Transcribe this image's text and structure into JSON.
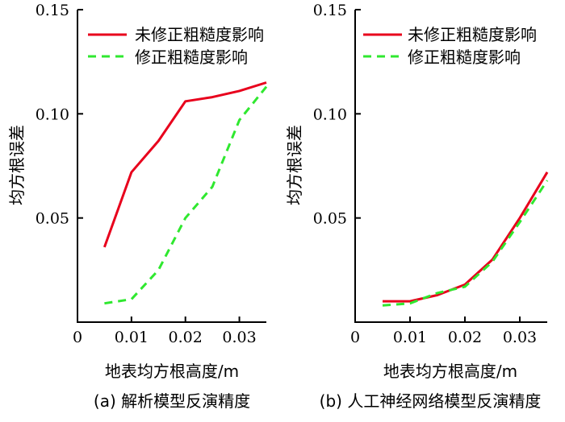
{
  "chart_data": [
    {
      "type": "line",
      "caption": "(a) 解析模型反演精度",
      "xlabel": "地表均方根高度/m",
      "ylabel": "均方根误差",
      "xlim": [
        0,
        0.035
      ],
      "ylim": [
        0,
        0.15
      ],
      "xticks": [
        0,
        0.01,
        0.02,
        0.03
      ],
      "xtick_labels": [
        "0",
        "0.01",
        "0.02",
        "0.03"
      ],
      "yticks": [
        0.05,
        0.1,
        0.15
      ],
      "ytick_labels": [
        "0.05",
        "0.10",
        "0.15"
      ],
      "legend_position": "top-left",
      "series": [
        {
          "name": "未修正粗糙度影响",
          "color": "#e8001c",
          "style": "solid",
          "x": [
            0.005,
            0.01,
            0.015,
            0.02,
            0.025,
            0.03,
            0.035
          ],
          "y": [
            0.036,
            0.072,
            0.087,
            0.106,
            0.108,
            0.111,
            0.115
          ]
        },
        {
          "name": "修正粗糙度影响",
          "color": "#2fe82f",
          "style": "dashed",
          "x": [
            0.005,
            0.01,
            0.015,
            0.02,
            0.025,
            0.03,
            0.035
          ],
          "y": [
            0.009,
            0.011,
            0.025,
            0.05,
            0.065,
            0.097,
            0.113
          ]
        }
      ]
    },
    {
      "type": "line",
      "caption": "(b) 人工神经网络模型反演精度",
      "xlabel": "地表均方根高度/m",
      "ylabel": "均方根误差",
      "xlim": [
        0,
        0.035
      ],
      "ylim": [
        0,
        0.15
      ],
      "xticks": [
        0,
        0.01,
        0.02,
        0.03
      ],
      "xtick_labels": [
        "0",
        "0.01",
        "0.02",
        "0.03"
      ],
      "yticks": [
        0.05,
        0.1,
        0.15
      ],
      "ytick_labels": [
        "0.05",
        "0.10",
        "0.15"
      ],
      "legend_position": "top-left",
      "series": [
        {
          "name": "未修正粗糙度影响",
          "color": "#e8001c",
          "style": "solid",
          "x": [
            0.005,
            0.01,
            0.015,
            0.02,
            0.025,
            0.03,
            0.035
          ],
          "y": [
            0.01,
            0.01,
            0.013,
            0.018,
            0.03,
            0.05,
            0.072
          ]
        },
        {
          "name": "修正粗糙度影响",
          "color": "#2fe82f",
          "style": "dashed",
          "x": [
            0.005,
            0.01,
            0.015,
            0.02,
            0.025,
            0.03,
            0.035
          ],
          "y": [
            0.008,
            0.009,
            0.014,
            0.017,
            0.029,
            0.048,
            0.068
          ]
        }
      ]
    }
  ]
}
